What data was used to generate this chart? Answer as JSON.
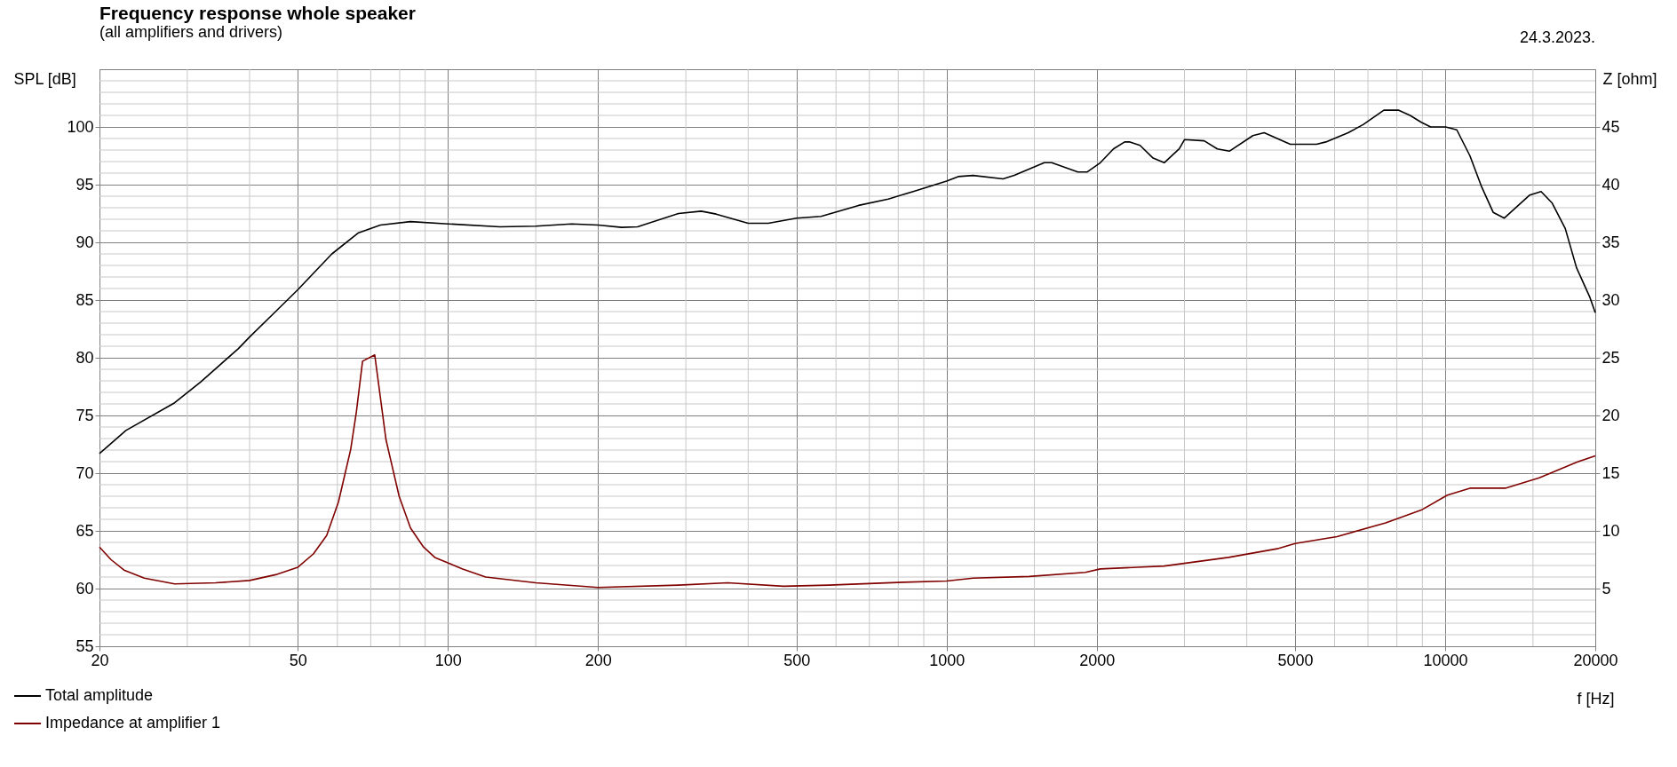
{
  "chart_data": {
    "type": "line",
    "title": "Frequency response whole speaker",
    "subtitle": "(all amplifiers and drivers)",
    "xlabel": "f [Hz]",
    "ylabel": "SPL [dB]",
    "y2label": "Z [ohm]",
    "annotations": [
      "24.3.2023."
    ],
    "log": "x",
    "xlim": [
      20,
      20000
    ],
    "xticks": [
      20,
      50,
      100,
      200,
      500,
      1000,
      2000,
      5000,
      10000,
      20000
    ],
    "ylim": [
      55,
      105
    ],
    "yticks": [
      55,
      60,
      65,
      70,
      75,
      80,
      85,
      90,
      95,
      100
    ],
    "y2lim": [
      0,
      50
    ],
    "y2ticks": [
      5,
      10,
      15,
      20,
      25,
      30,
      35,
      40,
      45
    ],
    "grid": true,
    "legend": "bottom left",
    "series": [
      {
        "name": "Total amplitude",
        "color": "#000000",
        "x": [
          20,
          22.6,
          28.3,
          31.9,
          38,
          40,
          45.1,
          50,
          58.5,
          66,
          73.2,
          84.1,
          100,
          127,
          150,
          177,
          200,
          223,
          240,
          290,
          322,
          345,
          400,
          439,
          500,
          560,
          666,
          764,
          863,
          1000,
          1055,
          1130,
          1298,
          1367,
          1570,
          1625,
          1834,
          1915,
          2034,
          2161,
          2276,
          2332,
          2443,
          2595,
          2732,
          2928,
          3000,
          3286,
          3491,
          3690,
          4115,
          4335,
          4603,
          4890,
          5521,
          5763,
          6389,
          6846,
          7533,
          8072,
          8502,
          8954,
          9350,
          10020,
          10550,
          11210,
          11810,
          12480,
          13140,
          14780,
          15570,
          16390,
          17410,
          18340,
          19480,
          20000
        ],
        "values": [
          71.7,
          73.7,
          76.1,
          77.9,
          80.8,
          81.8,
          84.0,
          85.9,
          89.0,
          90.8,
          91.5,
          91.8,
          91.6,
          91.35,
          91.4,
          91.6,
          91.5,
          91.3,
          91.35,
          92.5,
          92.7,
          92.45,
          91.65,
          91.65,
          92.1,
          92.25,
          93.2,
          93.75,
          94.45,
          95.3,
          95.7,
          95.8,
          95.5,
          95.8,
          96.9,
          96.9,
          96.1,
          96.1,
          96.9,
          98.1,
          98.7,
          98.7,
          98.4,
          97.3,
          96.9,
          98.1,
          98.9,
          98.8,
          98.1,
          97.9,
          99.25,
          99.5,
          99.0,
          98.5,
          98.5,
          98.7,
          99.5,
          100.2,
          101.45,
          101.45,
          101.0,
          100.4,
          100.0,
          100.0,
          99.75,
          97.5,
          94.9,
          92.6,
          92.1,
          94.1,
          94.4,
          93.4,
          91.2,
          87.8,
          85.3,
          83.9
        ]
      },
      {
        "name": "Impedance at amplifier 1",
        "color": "#800000",
        "axis": "y2",
        "x": [
          20,
          21.1,
          22.4,
          24.6,
          28.3,
          34.2,
          40,
          45.1,
          50,
          53.7,
          57.1,
          60.3,
          63.8,
          65.5,
          67.4,
          71.3,
          75.1,
          79.8,
          84.1,
          89.3,
          94.1,
          107,
          119,
          150,
          200,
          290,
          364,
          471,
          580,
          819,
          1000,
          1130,
          1465,
          1898,
          2034,
          2411,
          2732,
          3678,
          4603,
          5000,
          6068,
          7598,
          8954,
          10100,
          11210,
          13200,
          15440,
          18340,
          20000
        ],
        "values": [
          8.6,
          7.5,
          6.6,
          5.9,
          5.4,
          5.5,
          5.7,
          6.2,
          6.85,
          8.0,
          9.6,
          12.5,
          17.05,
          20.3,
          24.7,
          25.25,
          17.9,
          13.0,
          10.25,
          8.6,
          7.7,
          6.7,
          6.0,
          5.5,
          5.1,
          5.3,
          5.5,
          5.2,
          5.3,
          5.55,
          5.65,
          5.9,
          6.05,
          6.4,
          6.7,
          6.85,
          6.95,
          7.7,
          8.45,
          8.9,
          9.5,
          10.7,
          11.8,
          13.1,
          13.7,
          13.7,
          14.6,
          15.95,
          16.5
        ]
      }
    ]
  }
}
